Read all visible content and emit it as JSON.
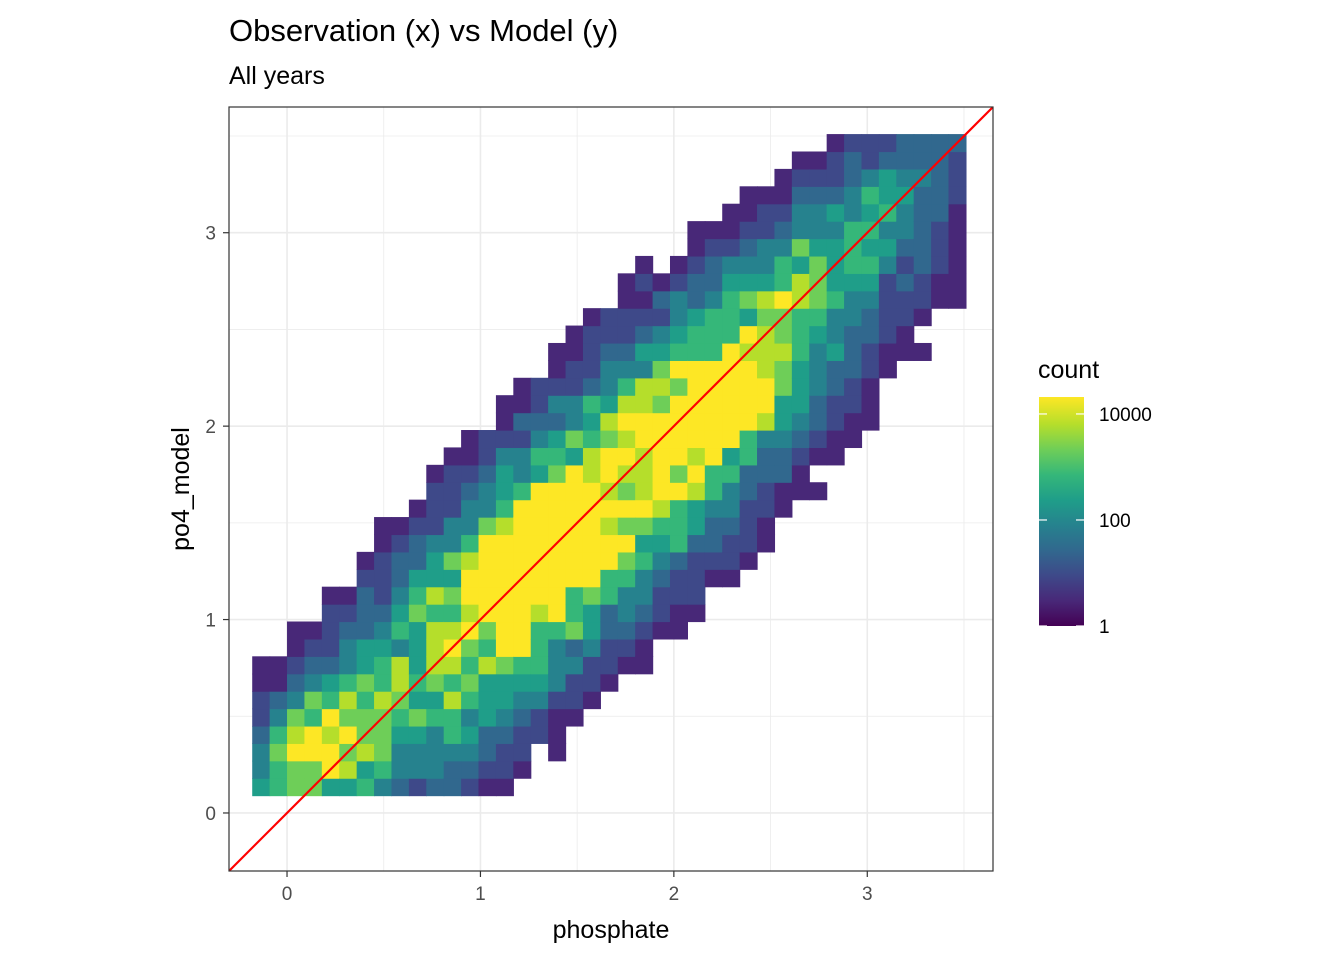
{
  "chart_data": {
    "type": "heatmap",
    "title": "Observation (x) vs Model (y)",
    "subtitle": "All years",
    "xlabel": "phosphate",
    "ylabel": "po4_model",
    "xlim": [
      -0.3,
      3.65
    ],
    "ylim": [
      -0.3,
      3.65
    ],
    "x_ticks": [
      0,
      1,
      2,
      3
    ],
    "y_ticks": [
      0,
      1,
      2,
      3
    ],
    "bin_width": 0.09,
    "grid": true,
    "reference_line": {
      "slope": 1,
      "intercept": 0,
      "color": "#ff0000"
    },
    "legend": {
      "title": "count",
      "position": "right",
      "scale": "log10",
      "breaks": [
        10000,
        100,
        1
      ],
      "labels": [
        "10000",
        "100",
        "1"
      ],
      "colormap": "viridis"
    },
    "colors": [
      "#440154",
      "#482878",
      "#3e4989",
      "#31688e",
      "#26828e",
      "#1f9e89",
      "#35b779",
      "#6ece58",
      "#b5de2b",
      "#fde725"
    ]
  }
}
